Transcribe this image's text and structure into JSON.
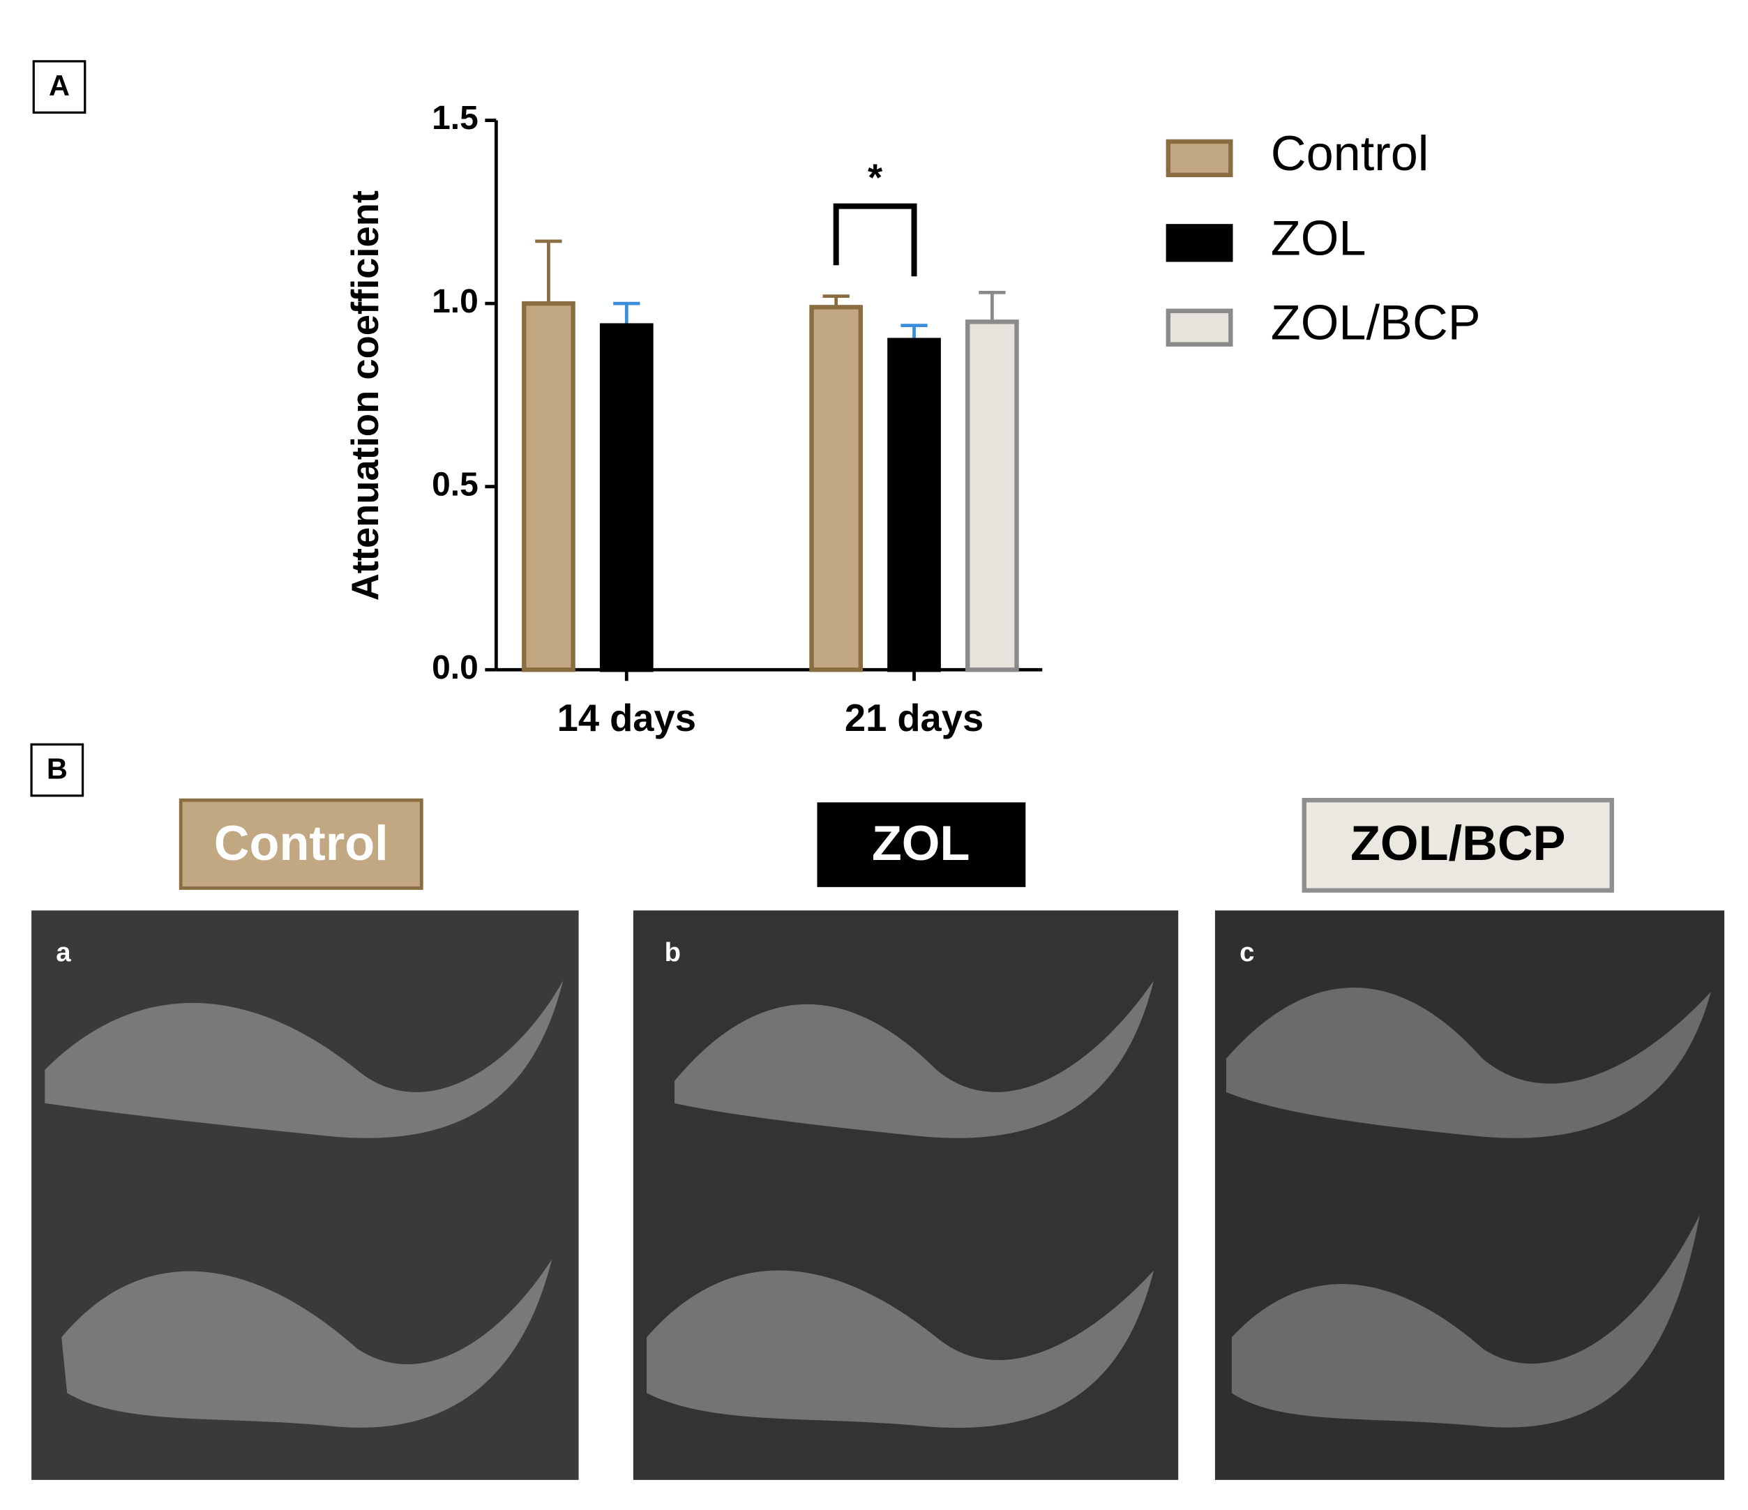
{
  "panel_a_label": "A",
  "chart_data": {
    "type": "bar",
    "y_label": "Attenuation coefficient",
    "categories": [
      "14 days",
      "21 days"
    ],
    "series": [
      {
        "name": "Control",
        "color": "#c2a783",
        "edge_color": "#8b6d42",
        "error_color": "#8b6d42",
        "values": [
          1.0,
          0.99
        ],
        "errors": [
          0.17,
          0.03
        ]
      },
      {
        "name": "ZOL",
        "color": "#000000",
        "edge_color": "#000000",
        "error_color": "#3b8fd9",
        "values": [
          0.94,
          0.9
        ],
        "errors": [
          0.06,
          0.04
        ]
      },
      {
        "name": "ZOL/BCP",
        "color": "#e6e3dd",
        "edge_color": "#8a8a8a",
        "error_color": "#8a8a8a",
        "values": [
          null,
          0.95
        ],
        "errors": [
          null,
          0.08
        ]
      }
    ],
    "ylim": [
      0,
      1.5
    ],
    "yticks": [
      {
        "value": 0,
        "label": "0.0"
      },
      0.5,
      {
        "value": 1,
        "label": "1.0"
      },
      1.5
    ],
    "annotation": "*",
    "legend": "right"
  },
  "panel_b": {
    "label": "B",
    "headers": [
      "Control",
      "ZOL",
      "ZOL/BCP"
    ],
    "image_labels": [
      "a",
      "b",
      "c"
    ]
  }
}
